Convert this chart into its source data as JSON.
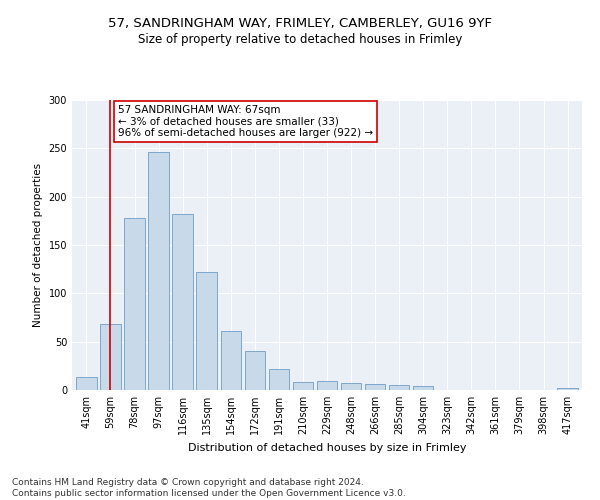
{
  "title1": "57, SANDRINGHAM WAY, FRIMLEY, CAMBERLEY, GU16 9YF",
  "title2": "Size of property relative to detached houses in Frimley",
  "xlabel": "Distribution of detached houses by size in Frimley",
  "ylabel": "Number of detached properties",
  "categories": [
    "41sqm",
    "59sqm",
    "78sqm",
    "97sqm",
    "116sqm",
    "135sqm",
    "154sqm",
    "172sqm",
    "191sqm",
    "210sqm",
    "229sqm",
    "248sqm",
    "266sqm",
    "285sqm",
    "304sqm",
    "323sqm",
    "342sqm",
    "361sqm",
    "379sqm",
    "398sqm",
    "417sqm"
  ],
  "values": [
    13,
    68,
    178,
    246,
    182,
    122,
    61,
    40,
    22,
    8,
    9,
    7,
    6,
    5,
    4,
    0,
    0,
    0,
    0,
    0,
    2
  ],
  "bar_color": "#c8d9ea",
  "bar_edge_color": "#5a8fc0",
  "vline_x": 1,
  "vline_color": "#cc0000",
  "annotation_text": "57 SANDRINGHAM WAY: 67sqm\n← 3% of detached houses are smaller (33)\n96% of semi-detached houses are larger (922) →",
  "annotation_box_color": "#ffffff",
  "annotation_box_edge": "#cc0000",
  "ylim": [
    0,
    300
  ],
  "yticks": [
    0,
    50,
    100,
    150,
    200,
    250,
    300
  ],
  "footnote": "Contains HM Land Registry data © Crown copyright and database right 2024.\nContains public sector information licensed under the Open Government Licence v3.0.",
  "plot_bg_color": "#eaf0f6",
  "title1_fontsize": 9.5,
  "title2_fontsize": 8.5,
  "xlabel_fontsize": 8,
  "ylabel_fontsize": 7.5,
  "tick_fontsize": 7,
  "footnote_fontsize": 6.5,
  "annotation_fontsize": 7.5
}
